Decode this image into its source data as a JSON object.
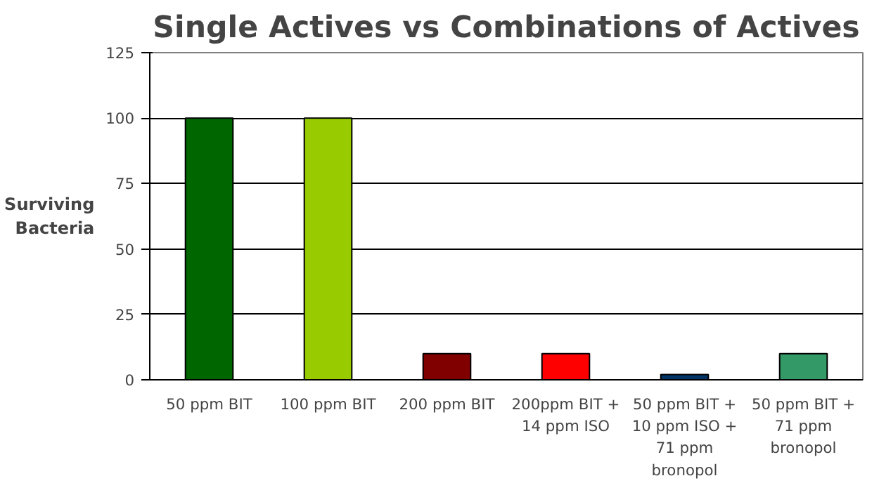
{
  "chart_data": {
    "type": "bar",
    "title": "Single Actives vs Combinations of Actives",
    "ylabel": "Surviving\nBacteria",
    "categories": [
      "50 ppm BIT",
      "100 ppm BIT",
      "200 ppm BIT",
      "200ppm BIT +\n14 ppm ISO",
      "50 ppm BIT +\n10 ppm ISO +\n71 ppm\nbronopol",
      "50 ppm BIT +\n71 ppm\nbronopol"
    ],
    "values": [
      100,
      100,
      10,
      10,
      2,
      10
    ],
    "colors": [
      "#006600",
      "#99cc00",
      "#800000",
      "#ff0000",
      "#003366",
      "#339966"
    ],
    "ylim": [
      0,
      125
    ],
    "yticks": [
      0,
      25,
      50,
      75,
      100,
      125
    ],
    "grid": "y"
  }
}
